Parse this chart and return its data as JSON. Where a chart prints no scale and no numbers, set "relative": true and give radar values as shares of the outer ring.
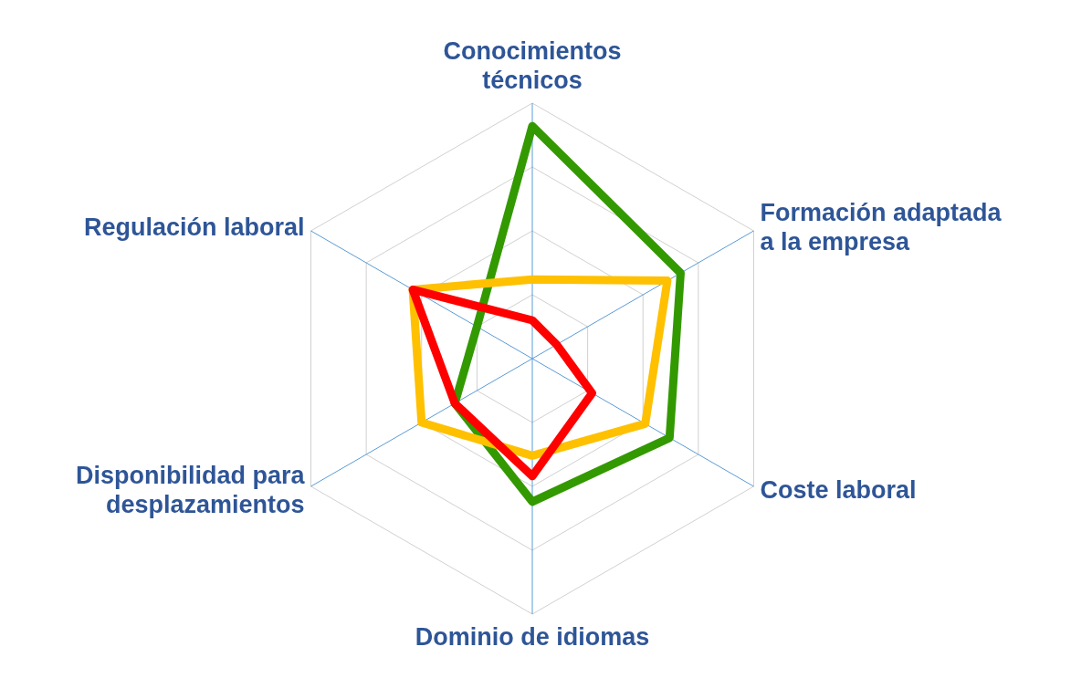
{
  "chart_data": {
    "type": "radar",
    "relative": true,
    "categories": [
      "Conocimientos técnicos",
      "Formación adaptada a la empresa",
      "Coste laboral",
      "Dominio de idiomas",
      "Disponibilidad para desplazamientos",
      "Regulación laboral"
    ],
    "series": [
      {
        "color": "#339900",
        "values": [
          0.91,
          0.67,
          0.62,
          0.56,
          0.35,
          0.25
        ]
      },
      {
        "color": "#ffc000",
        "values": [
          0.31,
          0.61,
          0.51,
          0.38,
          0.5,
          0.54
        ]
      },
      {
        "color": "#ff0000",
        "values": [
          0.15,
          0.11,
          0.27,
          0.46,
          0.35,
          0.54
        ]
      }
    ],
    "legend": false
  }
}
